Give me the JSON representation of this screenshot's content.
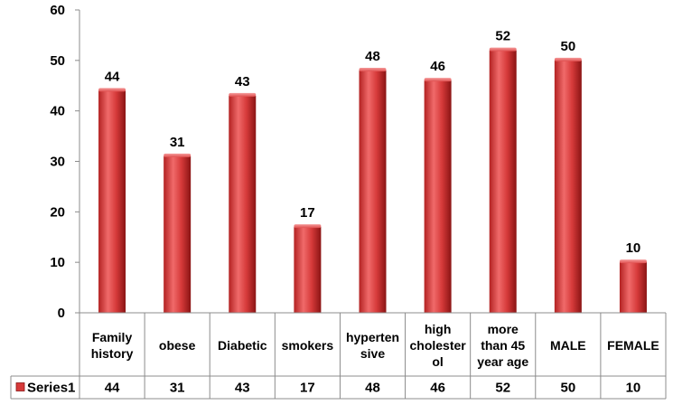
{
  "chart_data": {
    "type": "bar",
    "categories": [
      [
        "Family",
        "history"
      ],
      [
        "obese"
      ],
      [
        "Diabetic"
      ],
      [
        "smokers"
      ],
      [
        "hyperten",
        "sive"
      ],
      [
        "high",
        "cholester",
        "ol"
      ],
      [
        "more",
        "than 45",
        "year age"
      ],
      [
        "MALE"
      ],
      [
        "FEMALE"
      ]
    ],
    "series": [
      {
        "name": "Series1",
        "values": [
          44,
          31,
          43,
          17,
          48,
          46,
          52,
          50,
          10
        ]
      }
    ],
    "ylim": [
      0,
      60
    ],
    "yticks": [
      0,
      10,
      20,
      30,
      40,
      50,
      60
    ],
    "data_labels": true,
    "data_table": true,
    "colors": {
      "bar_light": "#f06a6a",
      "bar_mid": "#d63a3a",
      "bar_dark": "#8a1414",
      "axis": "#8c8c8c"
    }
  }
}
